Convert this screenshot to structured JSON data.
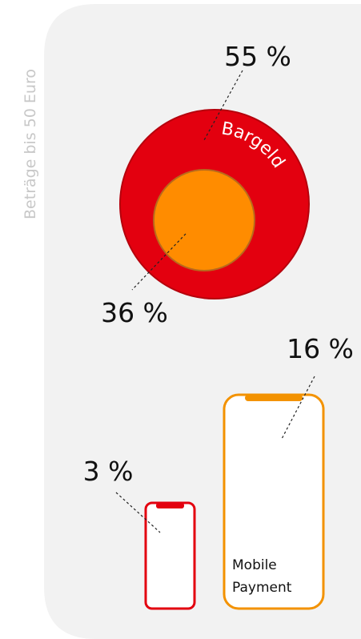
{
  "side_label": "Beträge bis 50 Euro",
  "cash": {
    "outer_label": "55 %",
    "inner_label": "36 %",
    "name": "Bargeld"
  },
  "mobile": {
    "large_label": "16 %",
    "small_label": "3 %",
    "name_lines": [
      "Mobile",
      "Payment"
    ]
  }
}
